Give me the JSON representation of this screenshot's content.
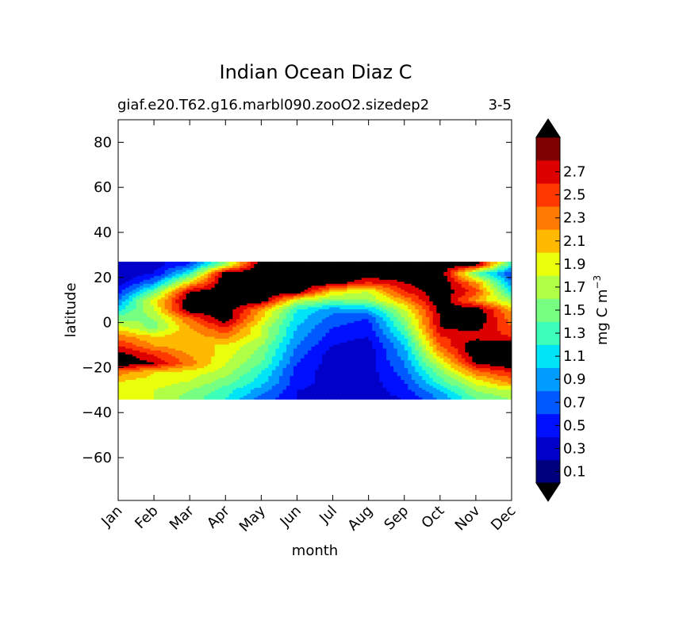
{
  "chart_data": {
    "type": "heatmap",
    "title": "Indian Ocean Diaz C",
    "subtitle_left": "giaf.e20.T62.g16.marbl090.zooO2.sizedep2",
    "subtitle_right": "3-5",
    "xlabel": "month",
    "ylabel": "latitude",
    "colorbar_label": "mg C m",
    "colorbar_label_exponent": "−3",
    "x_ticks": [
      "Jan",
      "Feb",
      "Mar",
      "Apr",
      "May",
      "Jun",
      "Jul",
      "Aug",
      "Sep",
      "Oct",
      "Nov",
      "Dec"
    ],
    "y_ticks": [
      80,
      60,
      40,
      20,
      0,
      -20,
      -40,
      -60
    ],
    "y_tick_labels": [
      "80",
      "60",
      "40",
      "20",
      "0",
      "−20",
      "−40",
      "−60"
    ],
    "xlim": [
      0,
      11
    ],
    "ylim": [
      -79,
      90
    ],
    "data_lat_range": [
      -34,
      27
    ],
    "levels": [
      0.0,
      0.2,
      0.4,
      0.6,
      0.8,
      1.0,
      1.2,
      1.4,
      1.6,
      1.8,
      2.0,
      2.2,
      2.4,
      2.6,
      2.8
    ],
    "level_colors": [
      "#00007f",
      "#0000c8",
      "#0010ff",
      "#0058ff",
      "#009cff",
      "#00e4f8",
      "#3cffba",
      "#76ff80",
      "#b0ff46",
      "#eaff0c",
      "#ffb900",
      "#ff7a00",
      "#ff3800",
      "#dc0000",
      "#7f0000"
    ],
    "extend_max_color": "#000000",
    "colorbar_tick_labels": [
      "0.1",
      "0.3",
      "0.5",
      "0.7",
      "0.9",
      "1.1",
      "1.3",
      "1.5",
      "1.7",
      "1.9",
      "2.1",
      "2.3",
      "2.5",
      "2.7"
    ],
    "grid": false,
    "lat": [
      -34,
      -30,
      -26,
      -22,
      -18,
      -14,
      -10,
      -6,
      -2,
      2,
      6,
      10,
      14,
      18,
      22,
      26
    ],
    "values": [
      [
        1.9,
        1.8,
        1.5,
        1.2,
        0.7,
        0.4,
        0.3,
        0.3,
        0.4,
        0.8,
        1.4,
        1.6
      ],
      [
        1.9,
        1.8,
        1.6,
        1.3,
        0.9,
        0.4,
        0.3,
        0.3,
        0.5,
        1.0,
        1.6,
        1.8
      ],
      [
        2.0,
        1.9,
        1.8,
        1.5,
        1.1,
        0.5,
        0.3,
        0.3,
        0.6,
        1.3,
        1.9,
        2.3
      ],
      [
        2.3,
        2.0,
        1.9,
        1.7,
        1.2,
        0.5,
        0.3,
        0.3,
        0.7,
        1.5,
        2.3,
        2.6
      ],
      [
        3.0,
        2.8,
        2.3,
        1.8,
        1.4,
        0.6,
        0.3,
        0.3,
        0.8,
        1.8,
        2.8,
        3.0
      ],
      [
        2.9,
        2.6,
        2.2,
        1.9,
        1.5,
        0.7,
        0.3,
        0.3,
        0.9,
        2.1,
        3.0,
        3.0
      ],
      [
        2.6,
        2.2,
        2.0,
        2.0,
        1.6,
        0.8,
        0.4,
        0.3,
        1.0,
        2.4,
        3.0,
        3.0
      ],
      [
        2.3,
        2.0,
        2.1,
        2.3,
        1.8,
        0.9,
        0.5,
        0.4,
        1.2,
        2.6,
        2.7,
        2.6
      ],
      [
        1.9,
        1.5,
        2.2,
        2.6,
        1.8,
        1.0,
        0.6,
        0.5,
        1.4,
        2.8,
        2.9,
        2.4
      ],
      [
        1.5,
        1.6,
        2.4,
        3.0,
        2.0,
        1.1,
        0.7,
        0.6,
        1.6,
        2.8,
        3.0,
        2.3
      ],
      [
        1.1,
        1.8,
        3.0,
        3.0,
        2.2,
        1.2,
        0.9,
        1.0,
        1.8,
        2.9,
        3.0,
        2.1
      ],
      [
        0.8,
        1.9,
        3.0,
        3.0,
        3.0,
        1.8,
        1.5,
        1.6,
        2.2,
        3.0,
        2.2,
        1.6
      ],
      [
        0.5,
        1.4,
        2.8,
        3.0,
        3.0,
        3.0,
        2.0,
        1.8,
        2.6,
        3.0,
        2.5,
        1.1
      ],
      [
        0.3,
        0.8,
        2.0,
        3.0,
        3.0,
        3.0,
        3.0,
        2.6,
        2.8,
        3.0,
        2.2,
        0.8
      ],
      [
        0.2,
        0.4,
        1.2,
        3.0,
        3.0,
        3.0,
        3.0,
        3.0,
        3.0,
        3.0,
        1.4,
        0.6
      ],
      [
        0.2,
        0.3,
        0.6,
        1.6,
        3.0,
        3.0,
        3.0,
        3.0,
        3.0,
        3.0,
        3.0,
        1.2
      ]
    ]
  }
}
